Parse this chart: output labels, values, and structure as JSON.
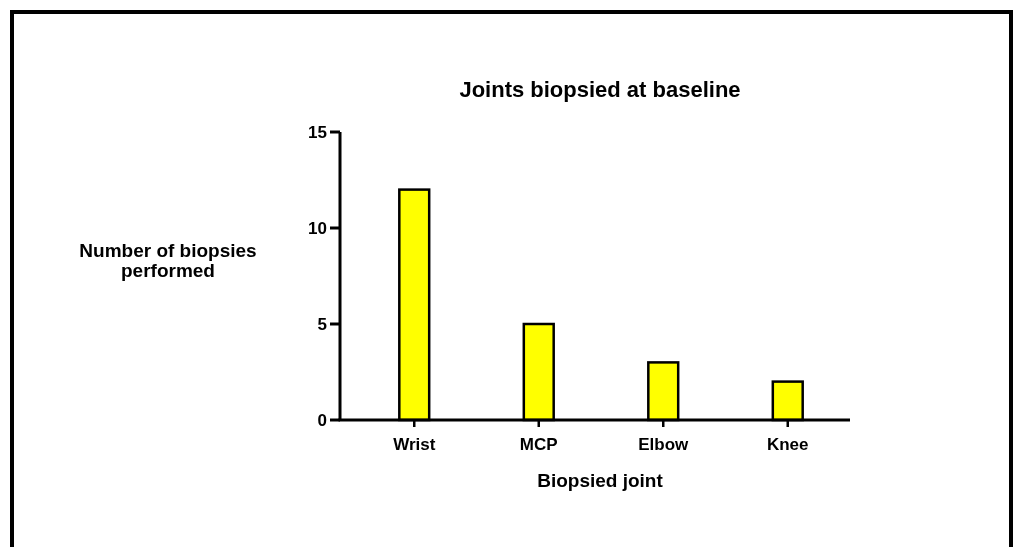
{
  "chart_data": {
    "type": "bar",
    "title": "Joints biopsied at baseline",
    "xlabel": "Biopsied joint",
    "ylabel": "Number of biopsies performed",
    "categories": [
      "Wrist",
      "MCP",
      "Elbow",
      "Knee"
    ],
    "values": [
      12,
      5,
      3,
      2
    ],
    "color": "#ffff00",
    "ylim": [
      0,
      15
    ],
    "yticks": [
      0,
      5,
      10,
      15
    ],
    "grid": false
  }
}
